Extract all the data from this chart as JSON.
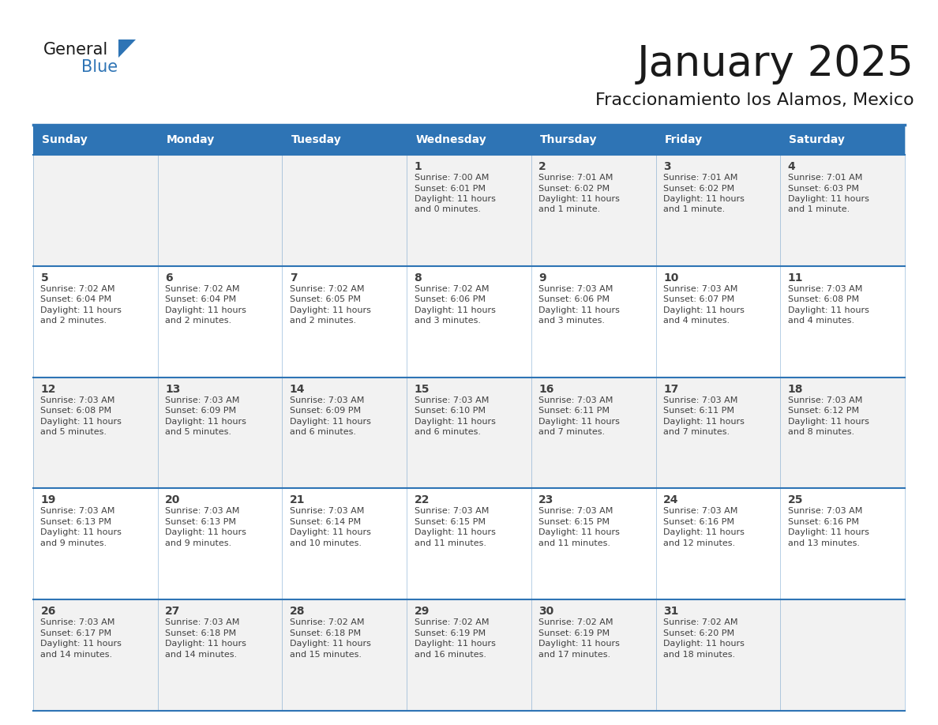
{
  "title": "January 2025",
  "subtitle": "Fraccionamiento los Alamos, Mexico",
  "days_of_week": [
    "Sunday",
    "Monday",
    "Tuesday",
    "Wednesday",
    "Thursday",
    "Friday",
    "Saturday"
  ],
  "header_bg": "#2E74B5",
  "header_text": "#FFFFFF",
  "cell_bg_odd": "#F2F2F2",
  "cell_bg_even": "#FFFFFF",
  "grid_line_color": "#2E74B5",
  "text_color": "#404040",
  "title_color": "#1A1A1A",
  "logo_general_color": "#1A1A1A",
  "logo_blue_color": "#2E74B5",
  "weeks": [
    [
      null,
      null,
      null,
      {
        "day": 1,
        "sunrise": "7:00 AM",
        "sunset": "6:01 PM",
        "daylight": "11 hours and 0 minutes."
      },
      {
        "day": 2,
        "sunrise": "7:01 AM",
        "sunset": "6:02 PM",
        "daylight": "11 hours and 1 minute."
      },
      {
        "day": 3,
        "sunrise": "7:01 AM",
        "sunset": "6:02 PM",
        "daylight": "11 hours and 1 minute."
      },
      {
        "day": 4,
        "sunrise": "7:01 AM",
        "sunset": "6:03 PM",
        "daylight": "11 hours and 1 minute."
      }
    ],
    [
      {
        "day": 5,
        "sunrise": "7:02 AM",
        "sunset": "6:04 PM",
        "daylight": "11 hours and 2 minutes."
      },
      {
        "day": 6,
        "sunrise": "7:02 AM",
        "sunset": "6:04 PM",
        "daylight": "11 hours and 2 minutes."
      },
      {
        "day": 7,
        "sunrise": "7:02 AM",
        "sunset": "6:05 PM",
        "daylight": "11 hours and 2 minutes."
      },
      {
        "day": 8,
        "sunrise": "7:02 AM",
        "sunset": "6:06 PM",
        "daylight": "11 hours and 3 minutes."
      },
      {
        "day": 9,
        "sunrise": "7:03 AM",
        "sunset": "6:06 PM",
        "daylight": "11 hours and 3 minutes."
      },
      {
        "day": 10,
        "sunrise": "7:03 AM",
        "sunset": "6:07 PM",
        "daylight": "11 hours and 4 minutes."
      },
      {
        "day": 11,
        "sunrise": "7:03 AM",
        "sunset": "6:08 PM",
        "daylight": "11 hours and 4 minutes."
      }
    ],
    [
      {
        "day": 12,
        "sunrise": "7:03 AM",
        "sunset": "6:08 PM",
        "daylight": "11 hours and 5 minutes."
      },
      {
        "day": 13,
        "sunrise": "7:03 AM",
        "sunset": "6:09 PM",
        "daylight": "11 hours and 5 minutes."
      },
      {
        "day": 14,
        "sunrise": "7:03 AM",
        "sunset": "6:09 PM",
        "daylight": "11 hours and 6 minutes."
      },
      {
        "day": 15,
        "sunrise": "7:03 AM",
        "sunset": "6:10 PM",
        "daylight": "11 hours and 6 minutes."
      },
      {
        "day": 16,
        "sunrise": "7:03 AM",
        "sunset": "6:11 PM",
        "daylight": "11 hours and 7 minutes."
      },
      {
        "day": 17,
        "sunrise": "7:03 AM",
        "sunset": "6:11 PM",
        "daylight": "11 hours and 7 minutes."
      },
      {
        "day": 18,
        "sunrise": "7:03 AM",
        "sunset": "6:12 PM",
        "daylight": "11 hours and 8 minutes."
      }
    ],
    [
      {
        "day": 19,
        "sunrise": "7:03 AM",
        "sunset": "6:13 PM",
        "daylight": "11 hours and 9 minutes."
      },
      {
        "day": 20,
        "sunrise": "7:03 AM",
        "sunset": "6:13 PM",
        "daylight": "11 hours and 9 minutes."
      },
      {
        "day": 21,
        "sunrise": "7:03 AM",
        "sunset": "6:14 PM",
        "daylight": "11 hours and 10 minutes."
      },
      {
        "day": 22,
        "sunrise": "7:03 AM",
        "sunset": "6:15 PM",
        "daylight": "11 hours and 11 minutes."
      },
      {
        "day": 23,
        "sunrise": "7:03 AM",
        "sunset": "6:15 PM",
        "daylight": "11 hours and 11 minutes."
      },
      {
        "day": 24,
        "sunrise": "7:03 AM",
        "sunset": "6:16 PM",
        "daylight": "11 hours and 12 minutes."
      },
      {
        "day": 25,
        "sunrise": "7:03 AM",
        "sunset": "6:16 PM",
        "daylight": "11 hours and 13 minutes."
      }
    ],
    [
      {
        "day": 26,
        "sunrise": "7:03 AM",
        "sunset": "6:17 PM",
        "daylight": "11 hours and 14 minutes."
      },
      {
        "day": 27,
        "sunrise": "7:03 AM",
        "sunset": "6:18 PM",
        "daylight": "11 hours and 14 minutes."
      },
      {
        "day": 28,
        "sunrise": "7:02 AM",
        "sunset": "6:18 PM",
        "daylight": "11 hours and 15 minutes."
      },
      {
        "day": 29,
        "sunrise": "7:02 AM",
        "sunset": "6:19 PM",
        "daylight": "11 hours and 16 minutes."
      },
      {
        "day": 30,
        "sunrise": "7:02 AM",
        "sunset": "6:19 PM",
        "daylight": "11 hours and 17 minutes."
      },
      {
        "day": 31,
        "sunrise": "7:02 AM",
        "sunset": "6:20 PM",
        "daylight": "11 hours and 18 minutes."
      },
      null
    ]
  ]
}
